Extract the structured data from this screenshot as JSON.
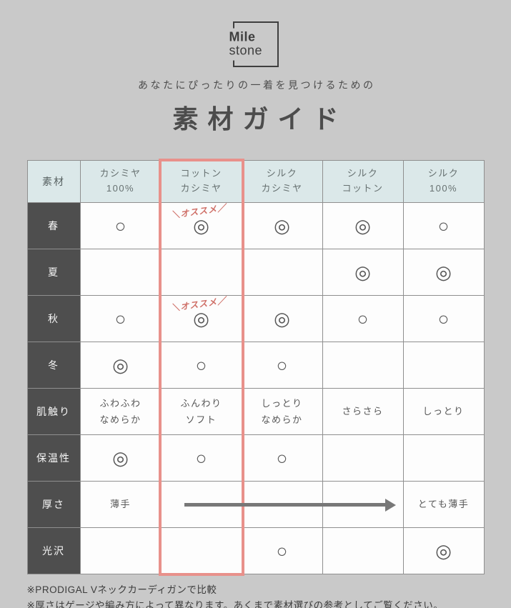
{
  "logo": {
    "line1": "Mile",
    "line2": "stone"
  },
  "header": {
    "subtitle": "あなたにぴったりの一着を見つけるための",
    "title": "素材ガイド"
  },
  "table": {
    "corner_label": "素材",
    "columns": [
      "カシミヤ\n100%",
      "コットン\nカシミヤ",
      "シルク\nカシミヤ",
      "シルク\nコットン",
      "シルク\n100%"
    ],
    "highlight_column_index": 1,
    "recommend_label": "＼オススメ／",
    "symbols": {
      "best": "◎",
      "good": "○"
    },
    "rows": [
      {
        "label": "春",
        "cells": [
          "○",
          "◎",
          "◎",
          "◎",
          "○"
        ],
        "notes": [
          1
        ]
      },
      {
        "label": "夏",
        "cells": [
          "",
          "",
          "",
          "◎",
          "◎"
        ]
      },
      {
        "label": "秋",
        "cells": [
          "○",
          "◎",
          "◎",
          "○",
          "○"
        ],
        "notes": [
          1
        ]
      },
      {
        "label": "冬",
        "cells": [
          "◎",
          "○",
          "○",
          "",
          ""
        ]
      },
      {
        "label": "肌触り",
        "cells": [
          "ふわふわ\nなめらか",
          "ふんわり\nソフト",
          "しっとり\nなめらか",
          "さらさら",
          "しっとり"
        ]
      },
      {
        "label": "保温性",
        "cells": [
          "◎",
          "○",
          "○",
          "",
          ""
        ]
      },
      {
        "label": "厚さ",
        "cells": [
          "薄手",
          "",
          "",
          "",
          "とても薄手"
        ],
        "arrow": true
      },
      {
        "label": "光沢",
        "cells": [
          "",
          "",
          "○",
          "",
          "◎"
        ]
      }
    ]
  },
  "footnotes": [
    "※PRODIGAL Vネックカーディガンで比較",
    "※厚さはゲージや編み方によって異なります。あくまで素材選びの参考としてご覧ください。"
  ],
  "colors": {
    "background": "#c9c9c9",
    "header_cell": "#dbe8e9",
    "label_cell": "#4e4e4e",
    "cell": "#fdfdfd",
    "grid_line": "#8f8f8f",
    "highlight": "#e8918b",
    "recommend_note": "#cf6f67",
    "arrow": "#787878",
    "text": "#4c4c4c"
  }
}
